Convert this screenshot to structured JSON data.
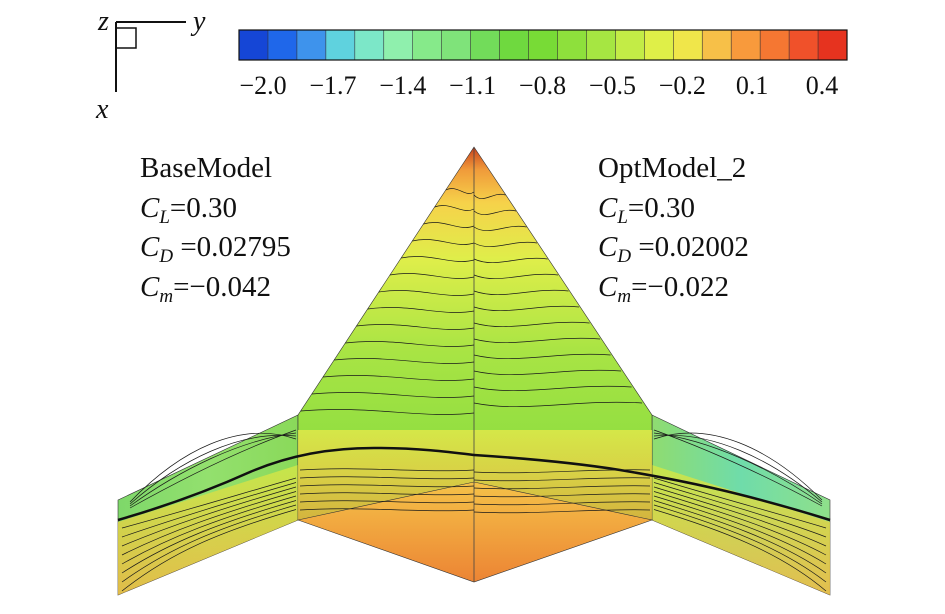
{
  "axes_triad": {
    "z_label": "z",
    "y_label": "y",
    "x_label": "x"
  },
  "colorbar": {
    "ticks": [
      "−2.0",
      "−1.7",
      "−1.4",
      "−1.1",
      "−0.8",
      "−0.5",
      "−0.2",
      "0.1",
      "0.4"
    ],
    "colors": [
      "#1546d6",
      "#1f67ea",
      "#3e93ec",
      "#5fd2de",
      "#7ce7c8",
      "#8ff0ad",
      "#86ea8a",
      "#7fe37a",
      "#72dc5a",
      "#6fd93f",
      "#78db36",
      "#8ee03c",
      "#a6e642",
      "#c3ec46",
      "#dfef48",
      "#f0e64a",
      "#f7c048",
      "#f89a3c",
      "#f57732",
      "#f0512a",
      "#e6331f"
    ]
  },
  "left_model": {
    "name": "BaseModel",
    "cl_symbol": "C",
    "cl_sub": "L",
    "cl_value": "=0.30",
    "cd_symbol": "C",
    "cd_sub": "D",
    "cd_value": " =0.02795",
    "cm_symbol": "C",
    "cm_sub": "m",
    "cm_value": "=−0.042"
  },
  "right_model": {
    "name": "OptModel_2",
    "cl_symbol": "C",
    "cl_sub": "L",
    "cl_value": "=0.30",
    "cd_symbol": "C",
    "cd_sub": "D",
    "cd_value": " =0.02002",
    "cm_symbol": "C",
    "cm_sub": "m",
    "cm_value": "=−0.022"
  }
}
